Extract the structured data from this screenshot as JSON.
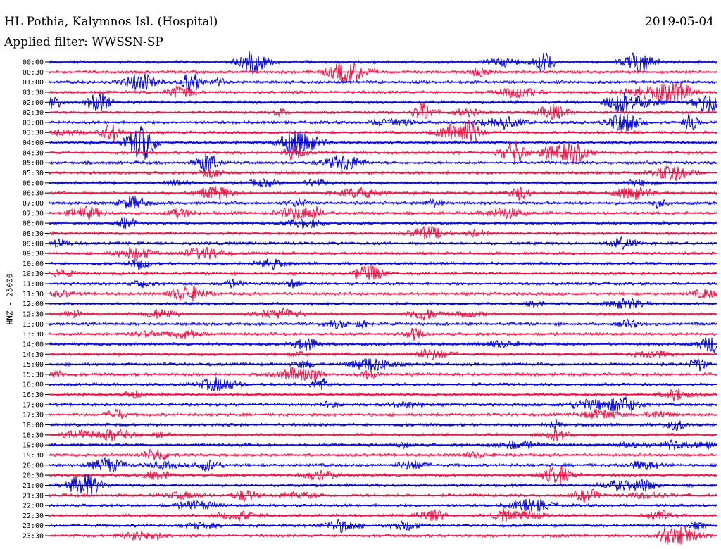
{
  "header": {
    "station_title": "HL Pothia, Kalymnos Isl. (Hospital)",
    "date": "2019-05-04",
    "filter": "Applied filter: WWSSN-SP"
  },
  "chart_data": {
    "type": "line",
    "subtype": "helicorder",
    "channel_label": "HNZ - 25000",
    "ylabels": [
      "00:00",
      "00:30",
      "01:00",
      "01:30",
      "02:00",
      "02:30",
      "03:00",
      "03:30",
      "04:00",
      "04:30",
      "05:00",
      "05:30",
      "06:00",
      "06:30",
      "07:00",
      "07:30",
      "08:00",
      "08:30",
      "09:00",
      "09:30",
      "10:00",
      "10:30",
      "11:00",
      "11:30",
      "12:00",
      "12:30",
      "13:00",
      "13:30",
      "14:00",
      "14:30",
      "15:00",
      "15:30",
      "16:00",
      "16:30",
      "17:00",
      "17:30",
      "18:00",
      "18:30",
      "19:00",
      "19:30",
      "20:00",
      "20:30",
      "21:00",
      "21:30",
      "22:00",
      "22:30",
      "23:00",
      "23:30"
    ],
    "trace_colors": [
      "#0000dd",
      "#ee1144"
    ],
    "trace_color_pattern": "alternating per 30-minute line, starting blue",
    "grid": false
  }
}
